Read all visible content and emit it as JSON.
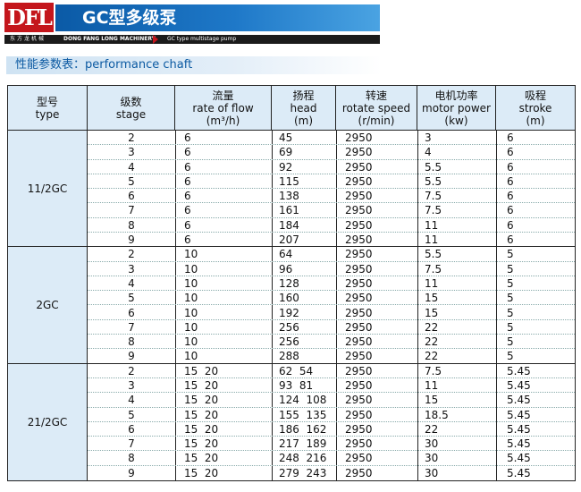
{
  "header": {
    "logo": "DFL",
    "title": "GC型多级泵",
    "company_cn": "东方龙机械",
    "company_en": "DONG FANG LONG MACHINERY",
    "product_en": "GC type multistage pump"
  },
  "section_title": "性能参数表：performance chaft",
  "columns": [
    {
      "cn": "型号",
      "en": "type",
      "unit": ""
    },
    {
      "cn": "级数",
      "en": "stage",
      "unit": ""
    },
    {
      "cn": "流量",
      "en": "rate of flow",
      "unit": "(m³/h)"
    },
    {
      "cn": "扬程",
      "en": "head",
      "unit": "(m)"
    },
    {
      "cn": "转速",
      "en": "rotate speed",
      "unit": "(r/min)"
    },
    {
      "cn": "电机功率",
      "en": "motor power",
      "unit": "(kw)"
    },
    {
      "cn": "吸程",
      "en": "stroke",
      "unit": "(m)"
    }
  ],
  "groups": [
    {
      "type": "11/2GC",
      "rows": [
        {
          "stage": "2",
          "flow": "6",
          "head": "45",
          "speed": "2950",
          "power": "3",
          "stroke": "6"
        },
        {
          "stage": "3",
          "flow": "6",
          "head": "69",
          "speed": "2950",
          "power": "4",
          "stroke": "6"
        },
        {
          "stage": "4",
          "flow": "6",
          "head": "92",
          "speed": "2950",
          "power": "5.5",
          "stroke": "6"
        },
        {
          "stage": "5",
          "flow": "6",
          "head": "115",
          "speed": "2950",
          "power": "5.5",
          "stroke": "6"
        },
        {
          "stage": "6",
          "flow": "6",
          "head": "138",
          "speed": "2950",
          "power": "7.5",
          "stroke": "6"
        },
        {
          "stage": "7",
          "flow": "6",
          "head": "161",
          "speed": "2950",
          "power": "7.5",
          "stroke": "6"
        },
        {
          "stage": "8",
          "flow": "6",
          "head": "184",
          "speed": "2950",
          "power": "11",
          "stroke": "6"
        },
        {
          "stage": "9",
          "flow": "6",
          "head": "207",
          "speed": "2950",
          "power": "11",
          "stroke": "6"
        }
      ]
    },
    {
      "type": "2GC",
      "rows": [
        {
          "stage": "2",
          "flow": "10",
          "head": "64",
          "speed": "2950",
          "power": "5.5",
          "stroke": "5"
        },
        {
          "stage": "3",
          "flow": "10",
          "head": "96",
          "speed": "2950",
          "power": "7.5",
          "stroke": "5"
        },
        {
          "stage": "4",
          "flow": "10",
          "head": "128",
          "speed": "2950",
          "power": "11",
          "stroke": "5"
        },
        {
          "stage": "5",
          "flow": "10",
          "head": "160",
          "speed": "2950",
          "power": "15",
          "stroke": "5"
        },
        {
          "stage": "6",
          "flow": "10",
          "head": "192",
          "speed": "2950",
          "power": "15",
          "stroke": "5"
        },
        {
          "stage": "7",
          "flow": "10",
          "head": "256",
          "speed": "2950",
          "power": "22",
          "stroke": "5"
        },
        {
          "stage": "8",
          "flow": "10",
          "head": "256",
          "speed": "2950",
          "power": "22",
          "stroke": "5"
        },
        {
          "stage": "9",
          "flow": "10",
          "head": "288",
          "speed": "2950",
          "power": "22",
          "stroke": "5"
        }
      ]
    },
    {
      "type": "21/2GC",
      "rows": [
        {
          "stage": "2",
          "flow": "15  20",
          "head": "62  54",
          "speed": "2950",
          "power": "7.5",
          "stroke": "5.45"
        },
        {
          "stage": "3",
          "flow": "15  20",
          "head": "93  81",
          "speed": "2950",
          "power": "11",
          "stroke": "5.45"
        },
        {
          "stage": "4",
          "flow": "15  20",
          "head": "124  108",
          "speed": "2950",
          "power": "15",
          "stroke": "5.45"
        },
        {
          "stage": "5",
          "flow": "15  20",
          "head": "155  135",
          "speed": "2950",
          "power": "18.5",
          "stroke": "5.45"
        },
        {
          "stage": "6",
          "flow": "15  20",
          "head": "186  162",
          "speed": "2950",
          "power": "22",
          "stroke": "5.45"
        },
        {
          "stage": "7",
          "flow": "15  20",
          "head": "217  189",
          "speed": "2950",
          "power": "30",
          "stroke": "5.45"
        },
        {
          "stage": "8",
          "flow": "15  20",
          "head": "248  216",
          "speed": "2950",
          "power": "30",
          "stroke": "5.45"
        },
        {
          "stage": "9",
          "flow": "15  20",
          "head": "279  243",
          "speed": "2950",
          "power": "30",
          "stroke": "5.45"
        }
      ]
    }
  ]
}
